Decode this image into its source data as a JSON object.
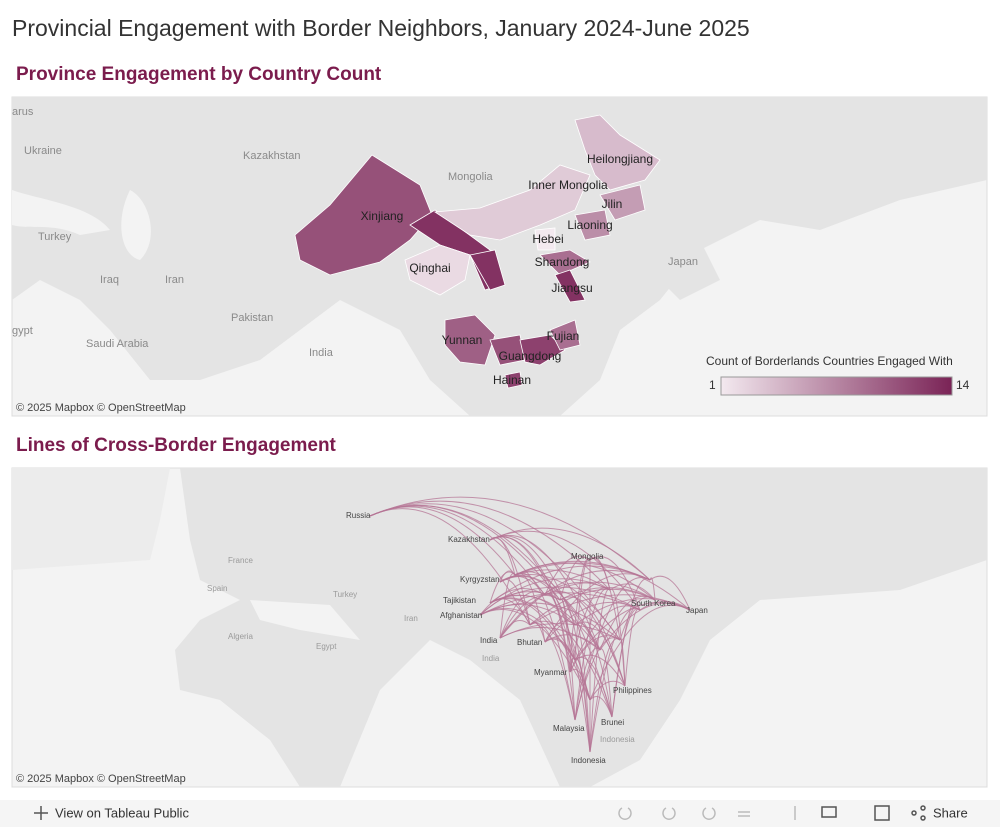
{
  "title": "Provincial Engagement with Border Neighbors, January 2024-June 2025",
  "map1": {
    "title": "Province Engagement by Country Count",
    "base_labels": [
      "arus",
      "Ukraine",
      "Kazakhstan",
      "Mongolia",
      "Turkey",
      "Iraq",
      "Iran",
      "Japan",
      "Pakistan",
      "Saudi Arabia",
      "India",
      "gypt"
    ],
    "provinces": [
      {
        "label": "Xinjiang",
        "value": 11
      },
      {
        "label": null,
        "value": 13
      },
      {
        "label": "Inner Mongolia",
        "value": 3
      },
      {
        "label": "Heilongjiang",
        "value": 4
      },
      {
        "label": "Jilin",
        "value": 6
      },
      {
        "label": "Liaoning",
        "value": 7
      },
      {
        "label": "Hebei",
        "value": 1
      },
      {
        "label": "Qinghai",
        "value": 2
      },
      {
        "label": null,
        "value": 13
      },
      {
        "label": "Shandong",
        "value": 9
      },
      {
        "label": "Jiangsu",
        "value": 13
      },
      {
        "label": "Yunnan",
        "value": 10
      },
      {
        "label": null,
        "value": 11
      },
      {
        "label": "Guangdong",
        "value": 12
      },
      {
        "label": "Fujian",
        "value": 9
      },
      {
        "label": "Hainan",
        "value": 12
      }
    ],
    "legend": {
      "title": "Count of Borderlands Countries Engaged With",
      "min": 1,
      "max": 14,
      "colors": [
        "#f3e9ef",
        "#7a2356"
      ]
    },
    "attribution": "© 2025 Mapbox  © OpenStreetMap"
  },
  "map2": {
    "title": "Lines of Cross-Border Engagement",
    "country_labels": [
      "Russia",
      "Kazakhstan",
      "Mongolia",
      "Kyrgyzstan",
      "Tajikistan",
      "Afghanistan",
      "India",
      "Bhutan",
      "Myanmar",
      "South Korea",
      "Japan",
      "Philippines",
      "Malaysia",
      "Brunei",
      "Indonesia"
    ],
    "base_labels": [
      "France",
      "Spain",
      "Turkey",
      "Iran",
      "Algeria",
      "Egypt",
      "India",
      "Indonesia"
    ],
    "line_color": "#b57596",
    "attribution": "© 2025 Mapbox  © OpenStreetMap"
  },
  "footer": {
    "view": "View on Tableau Public",
    "share": "Share"
  }
}
